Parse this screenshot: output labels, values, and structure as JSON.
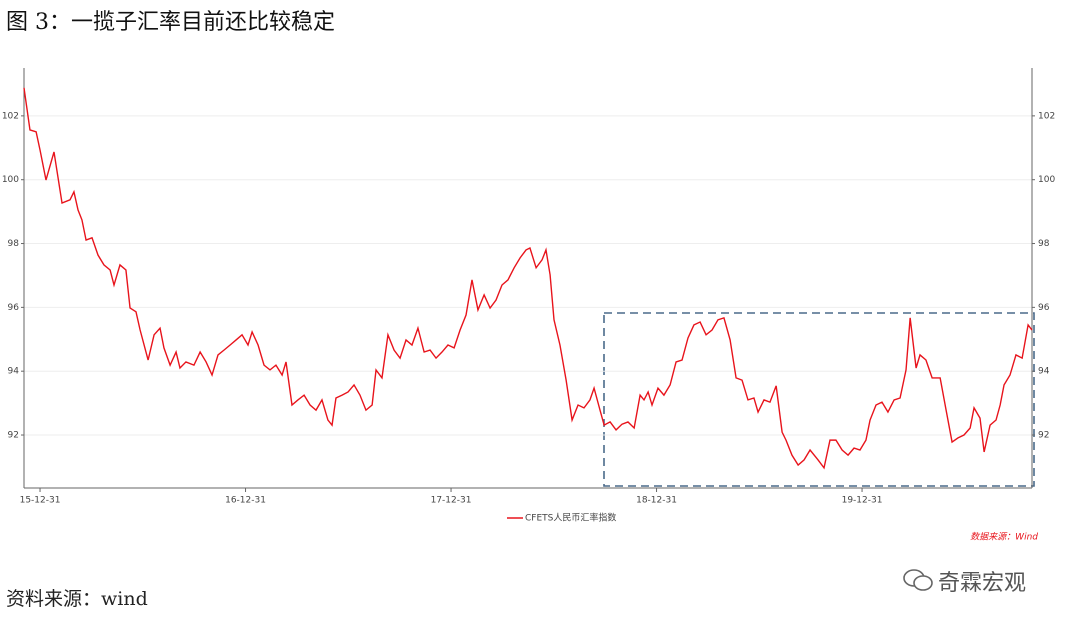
{
  "chart_data": {
    "type": "line",
    "title": "图 3：一揽子汇率目前还比较稳定",
    "source": "数据来源：Wind",
    "xlim": [
      2015.922,
      2020.827
    ],
    "ylim": [
      90.34,
      103.5
    ],
    "y2lim": [
      90.34,
      103.5
    ],
    "xticks": [
      {
        "value": 2016.0,
        "label": "15-12-31"
      },
      {
        "value": 2017.0,
        "label": "16-12-31"
      },
      {
        "value": 2018.0,
        "label": "17-12-31"
      },
      {
        "value": 2019.0,
        "label": "18-12-31"
      },
      {
        "value": 2020.0,
        "label": "19-12-31"
      }
    ],
    "yticks": [
      92,
      94,
      96,
      98,
      100,
      102
    ],
    "y2ticks": [
      92,
      94,
      96,
      98,
      100,
      102
    ],
    "grid": true,
    "x": [
      2015.922,
      2015.951,
      2015.981,
      2016.0,
      2016.029,
      2016.068,
      2016.107,
      2016.146,
      2016.165,
      2016.185,
      2016.204,
      2016.224,
      2016.253,
      2016.282,
      2016.311,
      2016.341,
      2016.36,
      2016.389,
      2016.418,
      2016.438,
      2016.467,
      2016.487,
      2016.526,
      2016.555,
      2016.584,
      2016.603,
      2016.633,
      2016.662,
      2016.681,
      2016.71,
      2016.749,
      2016.779,
      2016.808,
      2016.837,
      2016.866,
      2016.895,
      2016.925,
      2016.954,
      2016.983,
      2017.012,
      2017.032,
      2017.061,
      2017.09,
      2017.119,
      2017.148,
      2017.178,
      2017.197,
      2017.226,
      2017.255,
      2017.285,
      2017.314,
      2017.343,
      2017.372,
      2017.401,
      2017.421,
      2017.44,
      2017.47,
      2017.499,
      2017.528,
      2017.557,
      2017.586,
      2017.616,
      2017.635,
      2017.664,
      2017.693,
      2017.723,
      2017.752,
      2017.781,
      2017.81,
      2017.839,
      2017.869,
      2017.898,
      2017.927,
      2017.956,
      2017.985,
      2018.015,
      2018.044,
      2018.073,
      2018.102,
      2018.131,
      2018.161,
      2018.19,
      2018.219,
      2018.248,
      2018.277,
      2018.307,
      2018.336,
      2018.365,
      2018.384,
      2018.414,
      2018.443,
      2018.462,
      2018.482,
      2018.501,
      2018.53,
      2018.56,
      2018.589,
      2018.618,
      2018.647,
      2018.676,
      2018.696,
      2018.725,
      2018.745,
      2018.774,
      2018.803,
      2018.832,
      2018.861,
      2018.891,
      2018.92,
      2018.939,
      2018.959,
      2018.978,
      2019.007,
      2019.036,
      2019.066,
      2019.095,
      2019.124,
      2019.153,
      2019.182,
      2019.212,
      2019.241,
      2019.27,
      2019.299,
      2019.328,
      2019.358,
      2019.387,
      2019.416,
      2019.445,
      2019.474,
      2019.494,
      2019.523,
      2019.552,
      2019.582,
      2019.611,
      2019.63,
      2019.659,
      2019.689,
      2019.718,
      2019.747,
      2019.786,
      2019.815,
      2019.844,
      2019.873,
      2019.903,
      2019.932,
      2019.961,
      2019.99,
      2020.019,
      2020.039,
      2020.068,
      2020.097,
      2020.126,
      2020.156,
      2020.185,
      2020.214,
      2020.234,
      2020.263,
      2020.282,
      2020.311,
      2020.341,
      2020.38,
      2020.409,
      2020.438,
      2020.467,
      2020.496,
      2020.526,
      2020.545,
      2020.574,
      2020.594,
      2020.623,
      2020.652,
      2020.672,
      2020.691,
      2020.72,
      2020.749,
      2020.779,
      2020.808,
      2020.827
    ],
    "series": [
      {
        "name": "CFETS人民币汇率指数",
        "color": "#e8141c",
        "values": [
          102.88,
          101.56,
          101.5,
          100.93,
          99.99,
          100.87,
          99.27,
          99.37,
          99.62,
          99.05,
          98.74,
          98.11,
          98.18,
          97.64,
          97.33,
          97.17,
          96.7,
          97.33,
          97.17,
          95.98,
          95.86,
          95.29,
          94.35,
          95.14,
          95.35,
          94.73,
          94.19,
          94.6,
          94.1,
          94.29,
          94.19,
          94.6,
          94.29,
          93.88,
          94.51,
          94.66,
          94.82,
          94.98,
          95.14,
          94.82,
          95.23,
          94.82,
          94.19,
          94.04,
          94.19,
          93.88,
          94.29,
          92.94,
          93.1,
          93.25,
          92.94,
          92.78,
          93.1,
          92.47,
          92.31,
          93.16,
          93.25,
          93.35,
          93.57,
          93.25,
          92.78,
          92.94,
          94.04,
          93.79,
          95.14,
          94.66,
          94.41,
          94.98,
          94.82,
          95.35,
          94.6,
          94.66,
          94.41,
          94.6,
          94.82,
          94.73,
          95.29,
          95.76,
          96.86,
          95.92,
          96.39,
          95.98,
          96.23,
          96.7,
          96.86,
          97.24,
          97.55,
          97.8,
          97.86,
          97.24,
          97.49,
          97.8,
          97.02,
          95.61,
          94.82,
          93.72,
          92.47,
          92.94,
          92.85,
          93.1,
          93.47,
          92.78,
          92.31,
          92.41,
          92.16,
          92.34,
          92.41,
          92.22,
          93.25,
          93.1,
          93.35,
          92.94,
          93.47,
          93.25,
          93.57,
          94.29,
          94.35,
          95.04,
          95.45,
          95.54,
          95.14,
          95.29,
          95.61,
          95.67,
          94.98,
          93.79,
          93.72,
          93.1,
          93.16,
          92.72,
          93.1,
          93.03,
          93.54,
          92.09,
          91.84,
          91.37,
          91.06,
          91.22,
          91.53,
          91.22,
          90.97,
          91.84,
          91.84,
          91.53,
          91.37,
          91.59,
          91.53,
          91.84,
          92.47,
          92.94,
          93.03,
          92.72,
          93.1,
          93.16,
          94.04,
          95.67,
          94.1,
          94.51,
          94.35,
          93.79,
          93.79,
          92.78,
          91.78,
          91.91,
          92.0,
          92.22,
          92.85,
          92.53,
          91.47,
          92.31,
          92.47,
          92.94,
          93.57,
          93.88,
          94.51,
          94.41,
          95.45,
          95.29
        ]
      }
    ]
  },
  "caption": "资料来源：wind",
  "watermark": "奇霖宏观"
}
